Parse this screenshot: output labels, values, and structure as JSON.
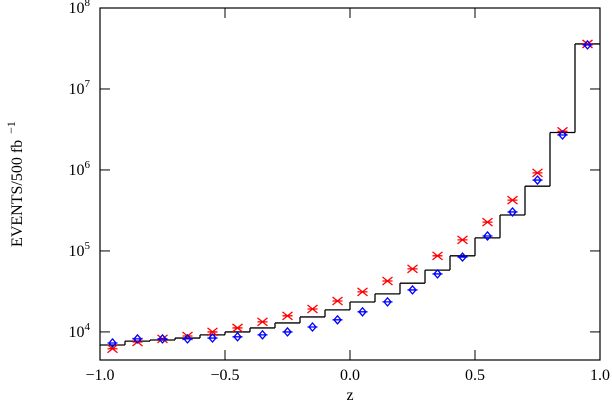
{
  "chart_data": {
    "type": "histogram",
    "xlabel": "z",
    "ylabel": "EVENTS/500 fb",
    "ylabel_exponent": "−1",
    "log_y": true,
    "color": "#000000",
    "bins": [
      -1.0,
      -0.9,
      -0.8,
      -0.7,
      -0.6,
      -0.5,
      -0.4,
      -0.3,
      -0.2,
      -0.1,
      0.0,
      0.1,
      0.2,
      0.3,
      0.4,
      0.5,
      0.6,
      0.7,
      0.8,
      0.9,
      1.0
    ],
    "counts": [
      6900,
      7700,
      7950,
      8400,
      9200,
      10000,
      11200,
      12900,
      15300,
      18700,
      23400,
      29500,
      40000,
      58000,
      87000,
      145000,
      278000,
      630000,
      2900000,
      36000000
    ],
    "x": [
      -0.95,
      -0.85,
      -0.75,
      -0.65,
      -0.55,
      -0.45,
      -0.35,
      -0.25,
      -0.15,
      -0.05,
      0.05,
      0.15,
      0.25,
      0.35,
      0.45,
      0.55,
      0.65,
      0.75,
      0.85,
      0.95
    ],
    "series": [
      {
        "color": "#ff0000",
        "marker": "asterisk",
        "values": [
          6200,
          7500,
          8200,
          8900,
          10000,
          11200,
          13300,
          15800,
          19200,
          24100,
          31200,
          42500,
          60000,
          87000,
          137000,
          227000,
          424000,
          920000,
          3000000,
          36000000
        ]
      },
      {
        "color": "#0000ff",
        "marker": "diamond",
        "values": [
          7300,
          8200,
          8200,
          8200,
          8400,
          8700,
          9200,
          10000,
          11500,
          14100,
          17700,
          23500,
          33000,
          52000,
          84000,
          153000,
          303000,
          750000,
          2700000,
          35000000
        ]
      }
    ],
    "xlim": [
      -1.0,
      1.0
    ],
    "xticks": [
      {
        "value": -1.0,
        "label": "−1.0"
      },
      {
        "value": -0.5,
        "label": "−0.5"
      },
      {
        "value": 0,
        "label": "0.0"
      },
      {
        "value": 0.5,
        "label": "0.5"
      },
      {
        "value": 1.0,
        "label": "1.0"
      }
    ],
    "ylim": [
      4500,
      100000000
    ],
    "yticks": [
      {
        "value": 10000,
        "label": "10",
        "exponent": "4"
      },
      {
        "value": 100000,
        "label": "10",
        "exponent": "5"
      },
      {
        "value": 1000000,
        "label": "10",
        "exponent": "6"
      },
      {
        "value": 10000000,
        "label": "10",
        "exponent": "7"
      },
      {
        "value": 100000000,
        "label": "10",
        "exponent": "8"
      }
    ]
  }
}
